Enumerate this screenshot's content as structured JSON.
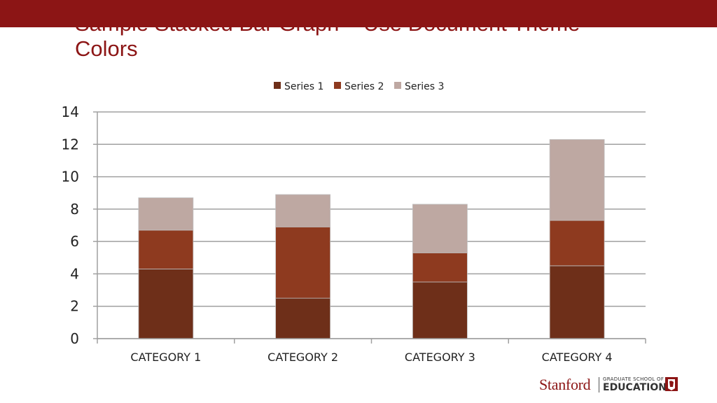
{
  "slide": {
    "title_line1": "Sample Stacked Bar Graph – Use Document Theme",
    "title_line2": "Colors"
  },
  "logo": {
    "main": "Stanford",
    "sub1": "GRADUATE SCHOOL OF",
    "sub2": "EDUCATION"
  },
  "chart_data": {
    "type": "bar",
    "stacked": true,
    "categories": [
      "CATEGORY 1",
      "CATEGORY 2",
      "CATEGORY 3",
      "CATEGORY 4"
    ],
    "series": [
      {
        "name": "Series 1",
        "values": [
          4.3,
          2.5,
          3.5,
          4.5
        ],
        "color": "#6e2f19"
      },
      {
        "name": "Series 2",
        "values": [
          2.4,
          4.4,
          1.8,
          2.8
        ],
        "color": "#8e3a1f"
      },
      {
        "name": "Series 3",
        "values": [
          2.0,
          2.0,
          3.0,
          5.0
        ],
        "color": "#bea8a2"
      }
    ],
    "ylim": [
      0,
      14
    ],
    "yticks": [
      0,
      2,
      4,
      6,
      8,
      10,
      12,
      14
    ],
    "grid": true,
    "legend": "top-center"
  }
}
